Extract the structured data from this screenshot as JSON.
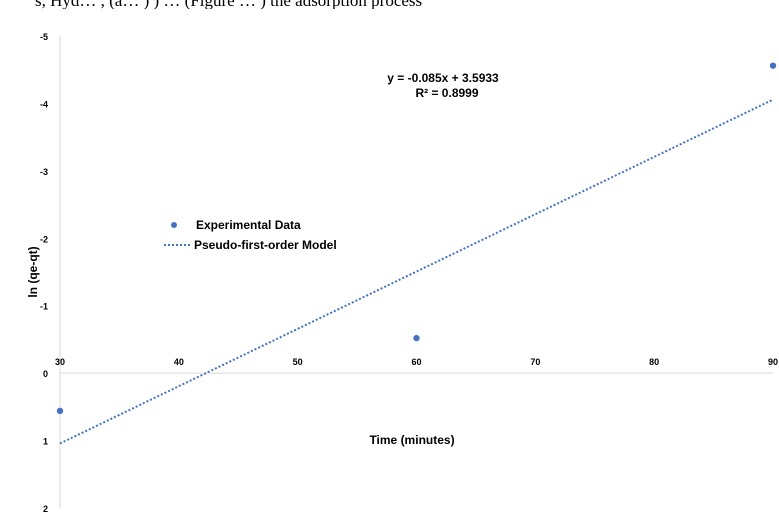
{
  "top_caption": "s, Hyd… , (a… ) ) …  (Figure … ) the adsorption process",
  "chart_data": {
    "type": "scatter",
    "xlabel": "Time (minutes)",
    "ylabel": "ln (qe-qt)",
    "xlim": [
      30,
      90
    ],
    "ylim": [
      2,
      -5
    ],
    "y_axis_inverted": true,
    "x_ticks": [
      "30",
      "40",
      "50",
      "60",
      "70",
      "80",
      "90"
    ],
    "y_ticks": [
      "-5",
      "-4",
      "-3",
      "-2",
      "-1",
      "0",
      "1",
      "2"
    ],
    "grid": false,
    "legend_placement": "center-left",
    "series": [
      {
        "name": "Experimental Data",
        "type": "scatter",
        "color": "#4472C4",
        "x": [
          30,
          60,
          90
        ],
        "y": [
          0.56,
          -0.52,
          -4.56
        ]
      },
      {
        "name": "Pseudo-first-order Model",
        "type": "line",
        "style": "dotted",
        "color": "#4472C4",
        "x": [
          30,
          90
        ],
        "y": [
          1.0433,
          -4.0567
        ]
      }
    ],
    "annotation": {
      "equation": "y = -0.085x + 3.5933",
      "r_squared": "R² = 0.8999"
    }
  }
}
